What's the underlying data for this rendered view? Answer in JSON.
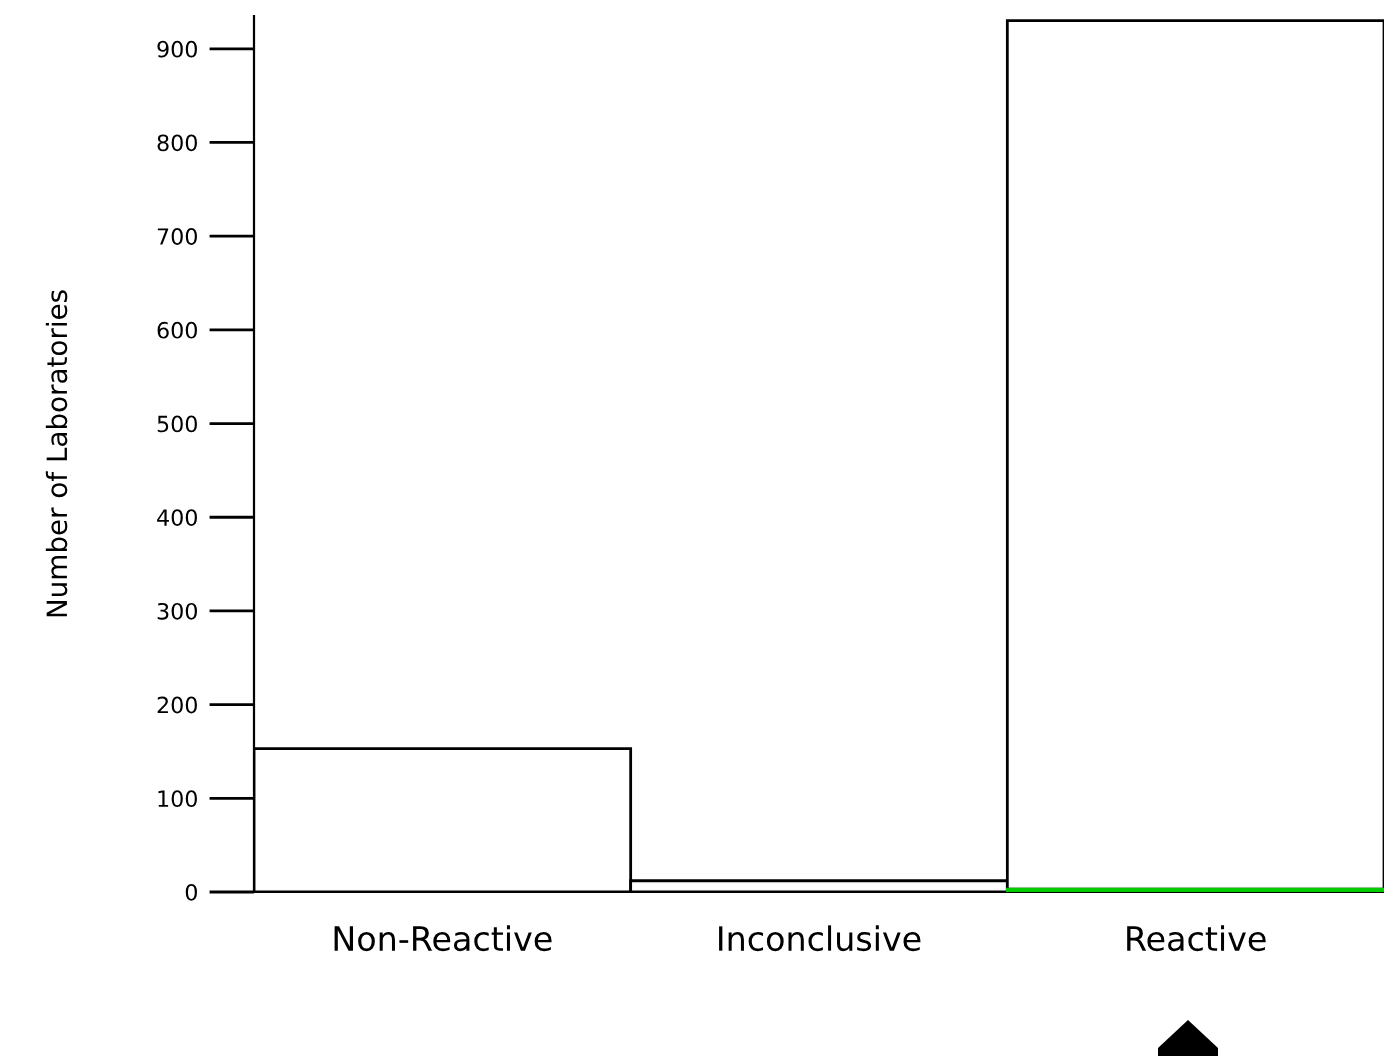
{
  "chart_data": {
    "type": "bar",
    "ylabel": "Number of Laboratories",
    "categories": [
      "Non-Reactive",
      "Inconclusive",
      "Reactive"
    ],
    "stacked": true,
    "series": [
      {
        "color": "#00cc00",
        "values": [
          null,
          null,
          3
        ]
      },
      {
        "color": "#ffffff",
        "values": [
          153,
          12,
          927
        ]
      }
    ],
    "ylim": [
      0,
      935
    ],
    "yticks": [
      0,
      100,
      200,
      300,
      400,
      500,
      600,
      700,
      800,
      900
    ],
    "grid": false,
    "legend": false
  }
}
